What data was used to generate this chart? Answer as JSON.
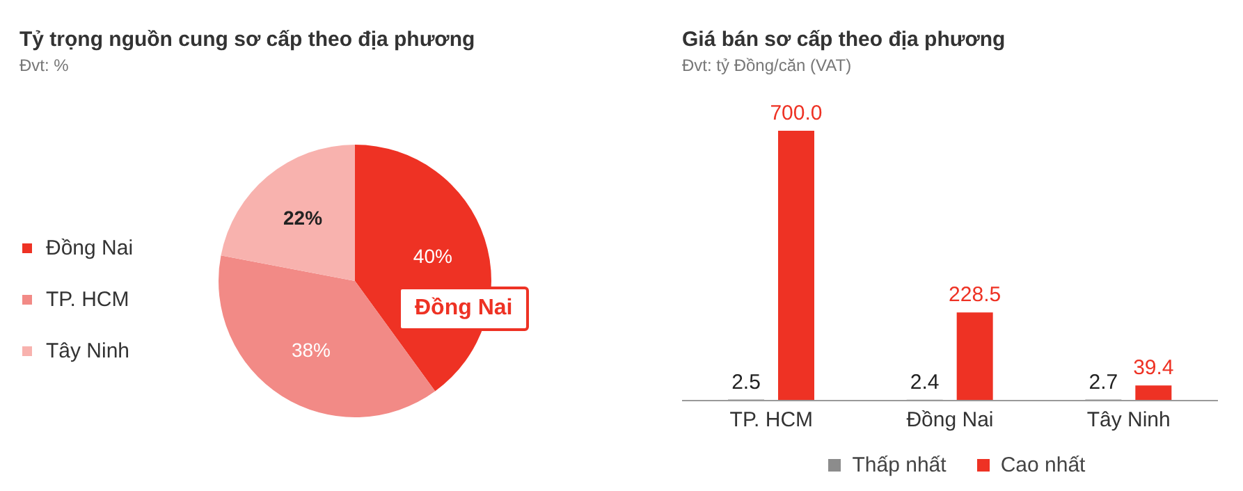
{
  "chart_data": [
    {
      "type": "pie",
      "title": "Tỷ trọng nguồn cung sơ cấp theo địa phương",
      "subtitle": "Đvt: %",
      "categories": [
        "Đồng Nai",
        "TP. HCM",
        "Tây Ninh"
      ],
      "values": [
        40,
        38,
        22
      ],
      "colors": [
        "#ee3224",
        "#f28a86",
        "#f8b2ae"
      ],
      "value_labels": [
        "40%",
        "38%",
        "22%"
      ],
      "legend": "left",
      "annotations": [
        "Đồng Nai"
      ]
    },
    {
      "type": "bar",
      "title": "Giá bán sơ cấp theo địa phương",
      "subtitle": "Đvt: tỷ Đồng/căn (VAT)",
      "categories": [
        "TP. HCM",
        "Đồng Nai",
        "Tây Ninh"
      ],
      "series": [
        {
          "name": "Thấp nhất",
          "color": "#8c8c8c",
          "values": [
            2.5,
            2.4,
            2.7
          ],
          "value_labels": [
            "2.5",
            "2.4",
            "2.7"
          ]
        },
        {
          "name": "Cao nhất",
          "color": "#ee3224",
          "values": [
            700.0,
            228.5,
            39.4
          ],
          "value_labels": [
            "700.0",
            "228.5",
            "39.4"
          ]
        }
      ],
      "legend": "bottom",
      "grid": false
    }
  ]
}
